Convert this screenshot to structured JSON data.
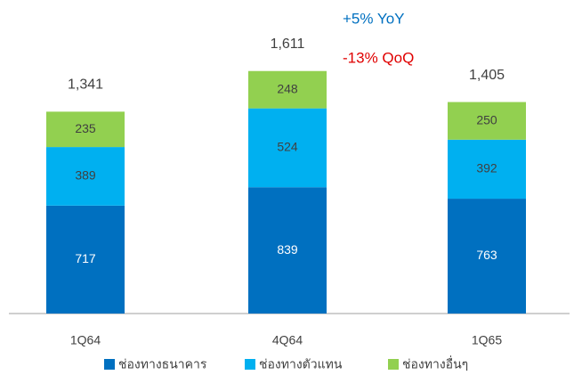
{
  "chart_data": {
    "type": "stacked_bar",
    "categories": [
      "1Q64",
      "4Q64",
      "1Q65"
    ],
    "series": [
      {
        "name": "ช่องทางธนาคาร",
        "color": "#0070c0",
        "values": [
          717,
          839,
          763
        ]
      },
      {
        "name": "ช่องทางตัวแทน",
        "color": "#00b0f0",
        "values": [
          389,
          524,
          392
        ]
      },
      {
        "name": "ช่องทางอื่นๆ",
        "color": "#92d050",
        "values": [
          235,
          248,
          250
        ]
      }
    ],
    "totals": [
      1341,
      1611,
      1405
    ],
    "total_labels": [
      "1,341",
      "1,611",
      "1,405"
    ],
    "annotations": [
      {
        "text": "+5% YoY",
        "color": "#0070c0"
      },
      {
        "text": "-13% QoQ",
        "color": "#e00000"
      }
    ],
    "legend": "bottom"
  }
}
